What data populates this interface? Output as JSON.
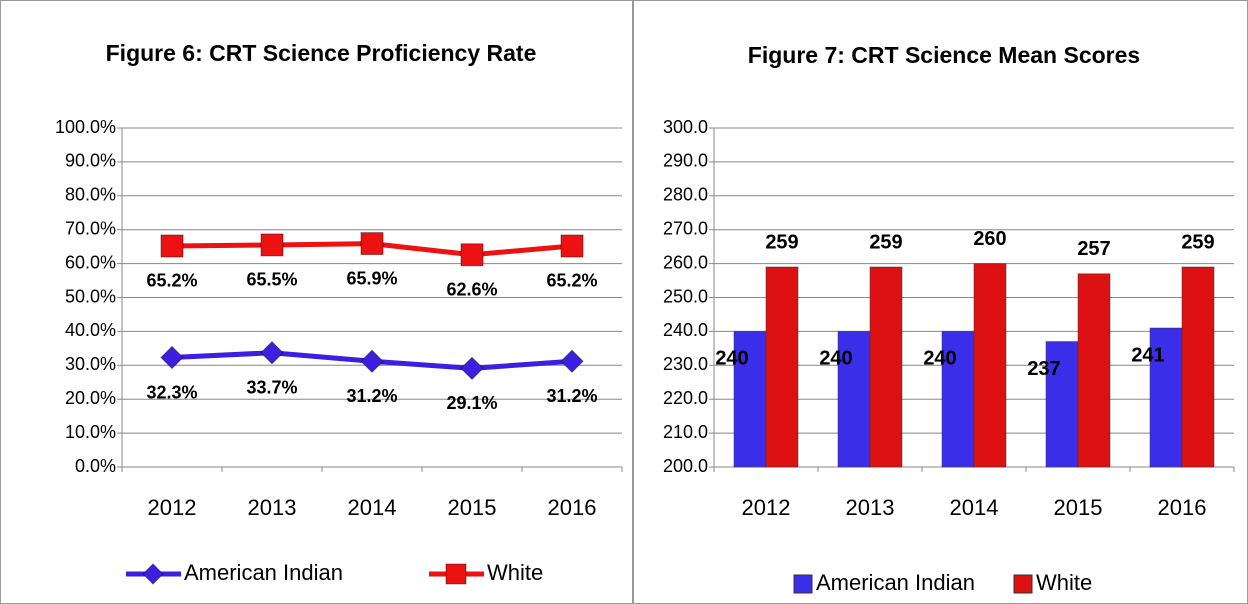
{
  "chart_data": [
    {
      "type": "line",
      "title": "Figure 6: CRT Science Proficiency Rate",
      "categories": [
        "2012",
        "2013",
        "2014",
        "2015",
        "2016"
      ],
      "series": [
        {
          "name": "American Indian",
          "color": "#3c1fe0",
          "marker": "diamond",
          "values": [
            32.3,
            33.7,
            31.2,
            29.1,
            31.2
          ],
          "value_labels": [
            "32.3%",
            "33.7%",
            "31.2%",
            "29.1%",
            "31.2%"
          ]
        },
        {
          "name": "White",
          "color": "#ee1111",
          "marker": "square",
          "values": [
            65.2,
            65.5,
            65.9,
            62.6,
            65.2
          ],
          "value_labels": [
            "65.2%",
            "65.5%",
            "65.9%",
            "62.6%",
            "65.2%"
          ]
        }
      ],
      "ylim": [
        0,
        100
      ],
      "yticks": [
        {
          "value": 0,
          "label": "0.0%"
        },
        {
          "value": 10,
          "label": "10.0%"
        },
        {
          "value": 20,
          "label": "20.0%"
        },
        {
          "value": 30,
          "label": "30.0%"
        },
        {
          "value": 40,
          "label": "40.0%"
        },
        {
          "value": 50,
          "label": "50.0%"
        },
        {
          "value": 60,
          "label": "60.0%"
        },
        {
          "value": 70,
          "label": "70.0%"
        },
        {
          "value": 80,
          "label": "80.0%"
        },
        {
          "value": 90,
          "label": "90.0%"
        },
        {
          "value": 100,
          "label": "100.0%"
        }
      ],
      "grid": true,
      "legend": "bottom"
    },
    {
      "type": "bar",
      "title": "Figure 7: CRT Science Mean Scores",
      "categories": [
        "2012",
        "2013",
        "2014",
        "2015",
        "2016"
      ],
      "series": [
        {
          "name": "American Indian",
          "color": "#3b2ee8",
          "values": [
            240,
            240,
            240,
            237,
            241
          ]
        },
        {
          "name": "White",
          "color": "#dd1111",
          "values": [
            259,
            259,
            260,
            257,
            259
          ]
        }
      ],
      "ylim": [
        200,
        300
      ],
      "yticks": [
        {
          "value": 200,
          "label": "200.0"
        },
        {
          "value": 210,
          "label": "210.0"
        },
        {
          "value": 220,
          "label": "220.0"
        },
        {
          "value": 230,
          "label": "230.0"
        },
        {
          "value": 240,
          "label": "240.0"
        },
        {
          "value": 250,
          "label": "250.0"
        },
        {
          "value": 260,
          "label": "260.0"
        },
        {
          "value": 270,
          "label": "270.0"
        },
        {
          "value": 280,
          "label": "280.0"
        },
        {
          "value": 290,
          "label": "290.0"
        },
        {
          "value": 300,
          "label": "300.0"
        }
      ],
      "grid": true,
      "legend": "bottom"
    }
  ]
}
